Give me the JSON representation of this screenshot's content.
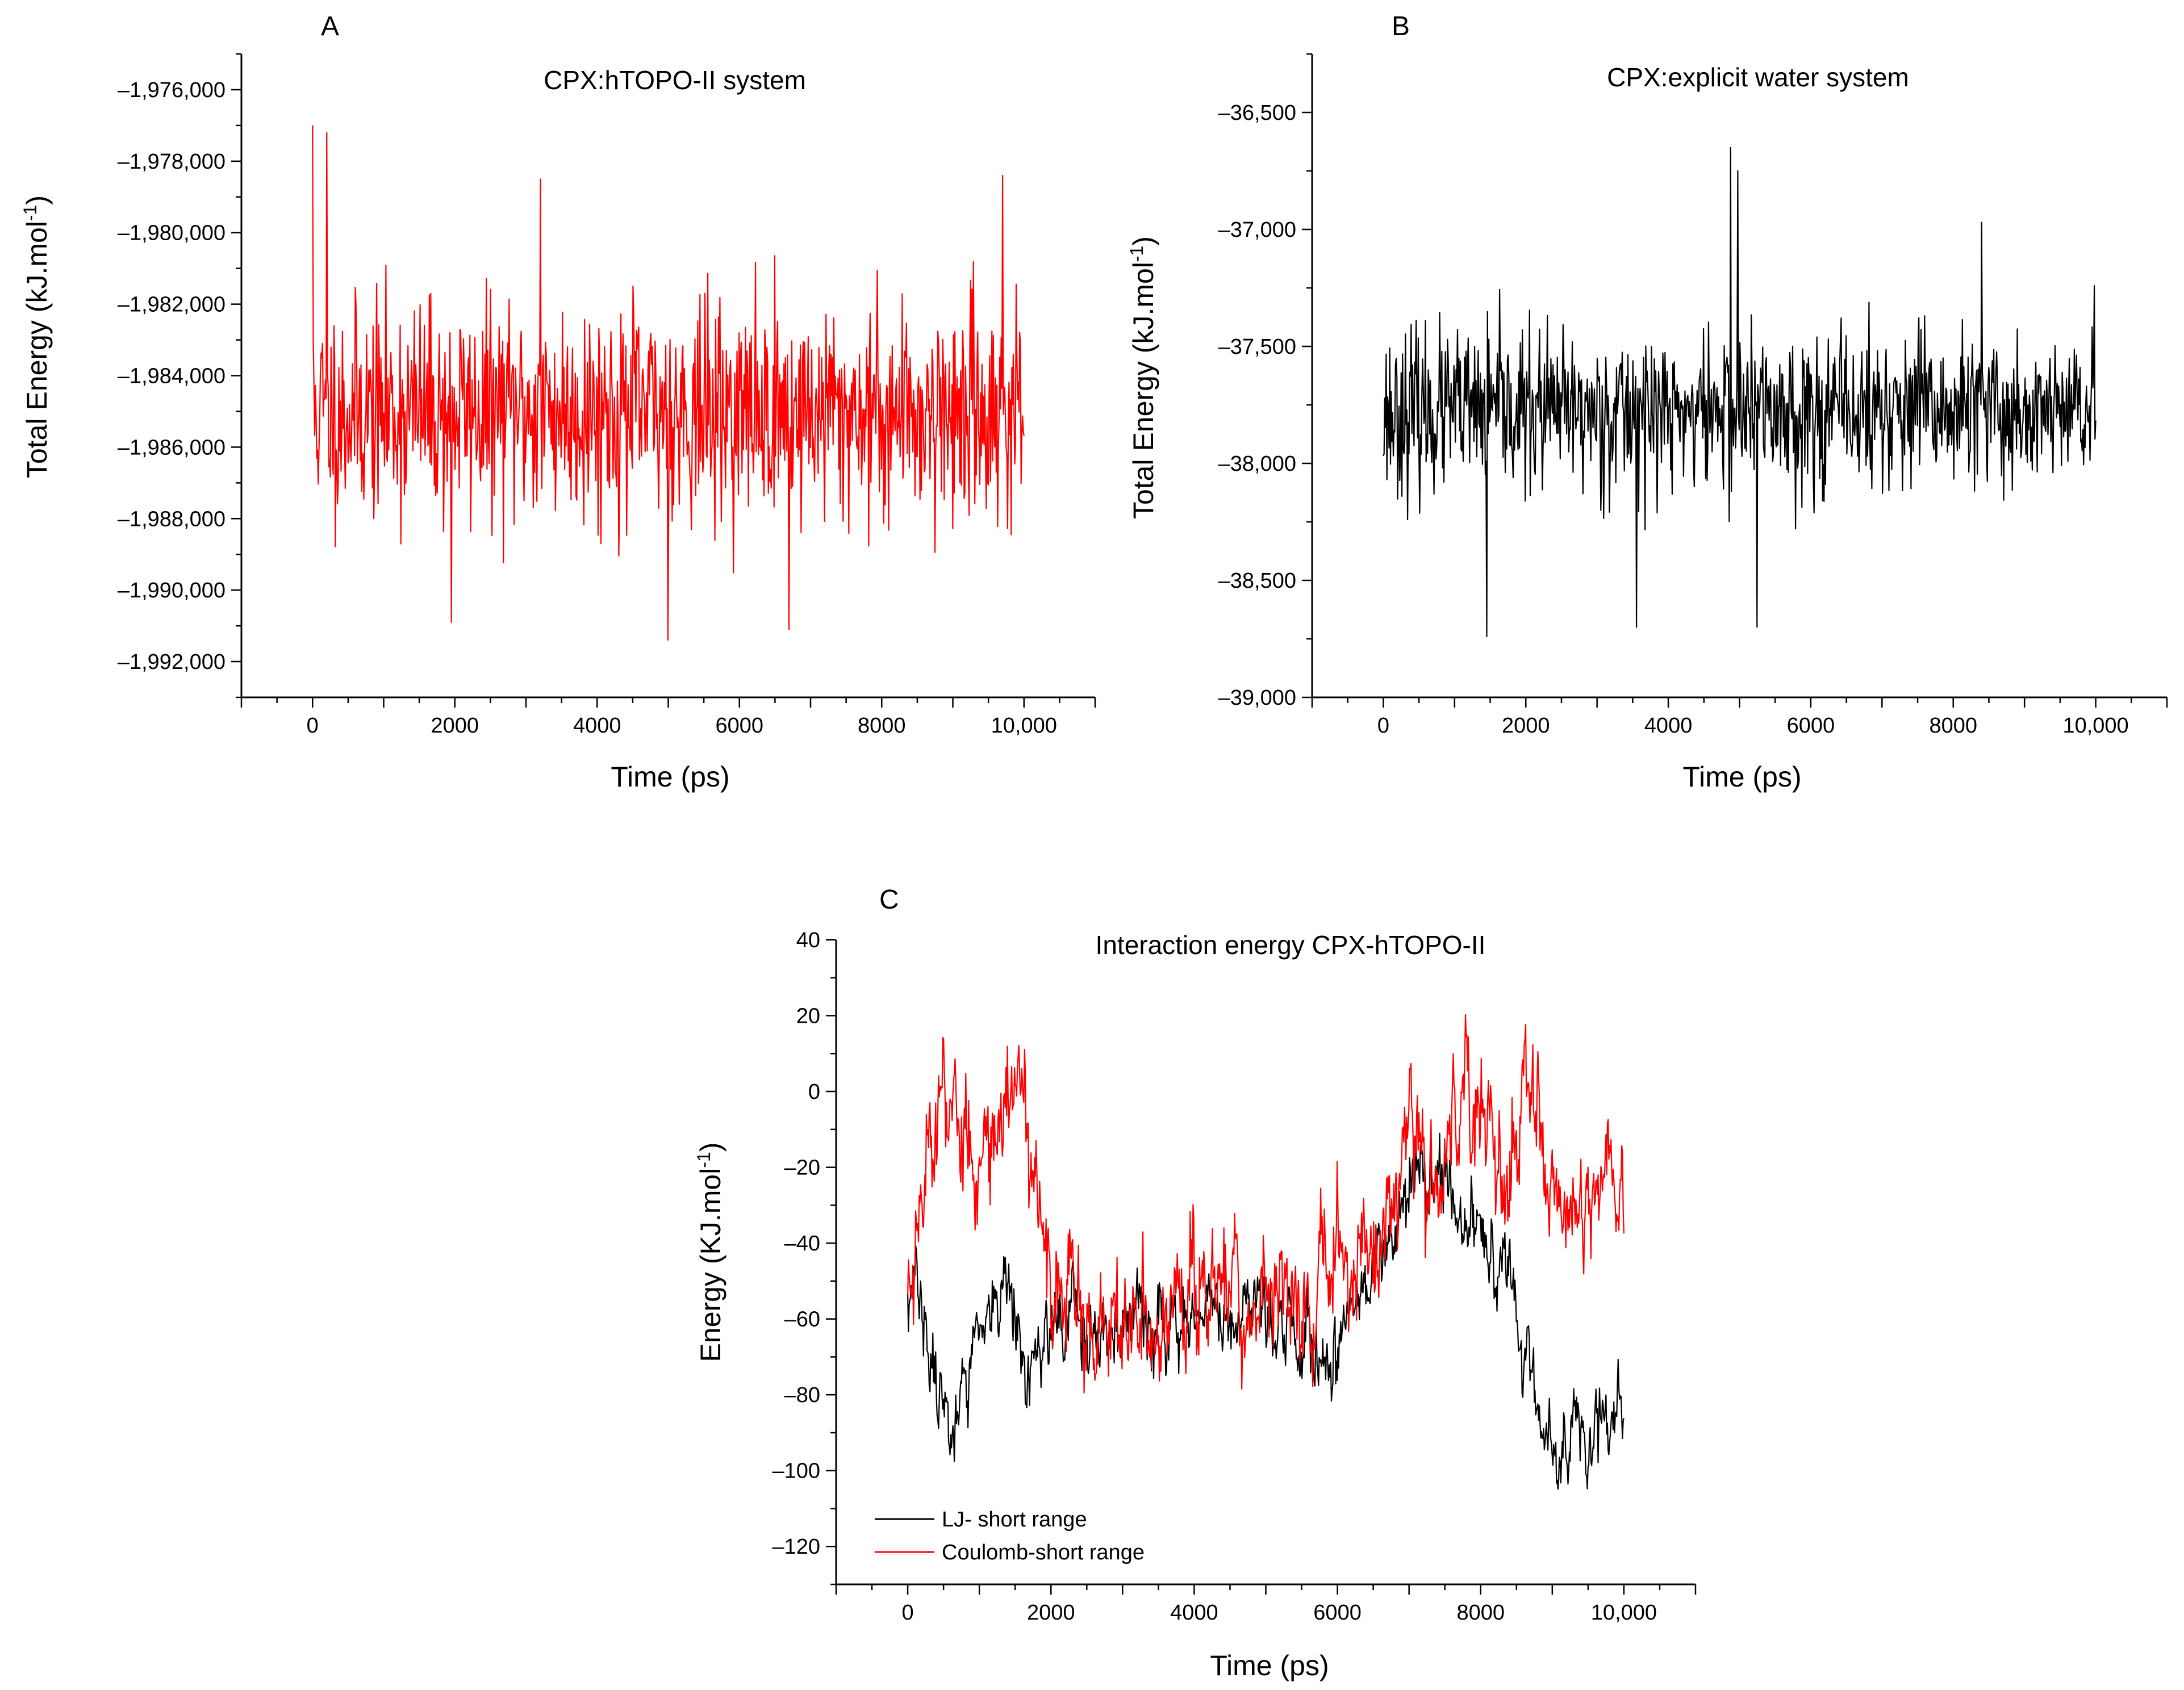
{
  "figure": {
    "panels": [
      "A",
      "B",
      "C"
    ]
  },
  "chart_data": [
    {
      "id": "A",
      "panel_label": "A",
      "type": "line",
      "title": "CPX:hTOPO-II system",
      "xlabel": "Time (ps)",
      "ylabel": "Total Energy (kJ.mol",
      "ylabel_sup": "-1",
      "ylabel_tail": ")",
      "xlim": [
        -1000,
        11000
      ],
      "ylim": [
        -1993000,
        -1975000
      ],
      "x_ticks": [
        0,
        2000,
        4000,
        6000,
        8000,
        10000
      ],
      "x_tick_labels": [
        "0",
        "2000",
        "4000",
        "6000",
        "8000",
        "10,000"
      ],
      "y_ticks": [
        -1976000,
        -1978000,
        -1980000,
        -1982000,
        -1984000,
        -1986000,
        -1988000,
        -1990000,
        -1992000
      ],
      "y_tick_labels": [
        "–1,976,000",
        "–1,978,000",
        "–1,980,000",
        "–1,982,000",
        "–1,984,000",
        "–1,986,000",
        "–1,988,000",
        "–1,990,000",
        "–1,992,000"
      ],
      "series": [
        {
          "name": "Total energy",
          "color": "#ff0000",
          "mean": -1985000,
          "sd": 1500,
          "n": 1000,
          "x_start": 0,
          "x_end": 10000,
          "seed": 11,
          "kind": "noise",
          "spike_points": [
            [
              0,
              -1977000
            ],
            [
              200,
              -1977200
            ],
            [
              3200,
              -1978500
            ],
            [
              9700,
              -1978400
            ],
            [
              5000,
              -1991400
            ],
            [
              6700,
              -1991100
            ],
            [
              1950,
              -1990900
            ]
          ]
        }
      ]
    },
    {
      "id": "B",
      "panel_label": "B",
      "type": "line",
      "title": "CPX:explicit water system",
      "xlabel": "Time (ps)",
      "ylabel": "Total Energy (kJ.mol",
      "ylabel_sup": "-1",
      "ylabel_tail": ")",
      "xlim": [
        -1000,
        11000
      ],
      "ylim": [
        -39000,
        -36250
      ],
      "x_ticks": [
        0,
        2000,
        4000,
        6000,
        8000,
        10000
      ],
      "x_tick_labels": [
        "0",
        "2000",
        "4000",
        "6000",
        "8000",
        "10,000"
      ],
      "y_ticks": [
        -36500,
        -37000,
        -37500,
        -38000,
        -38500,
        -39000
      ],
      "y_tick_labels": [
        "–36,500",
        "–37,000",
        "–37,500",
        "–38,000",
        "–38,500",
        "–39,000"
      ],
      "series": [
        {
          "name": "Total energy",
          "color": "#000000",
          "mean": -37780,
          "sd": 170,
          "n": 1000,
          "x_start": 0,
          "x_end": 10000,
          "seed": 23,
          "kind": "noise",
          "spike_points": [
            [
              4870,
              -36650
            ],
            [
              4970,
              -36750
            ],
            [
              8400,
              -36970
            ],
            [
              1450,
              -38740
            ],
            [
              5250,
              -38700
            ],
            [
              3550,
              -38700
            ]
          ]
        }
      ]
    },
    {
      "id": "C",
      "panel_label": "C",
      "type": "line",
      "title": "Interaction energy CPX-hTOPO-II",
      "xlabel": "Time (ps)",
      "ylabel": "Energy (KJ.mol",
      "ylabel_sup": "-1",
      "ylabel_tail": ")",
      "xlim": [
        -1000,
        11000
      ],
      "ylim": [
        -130,
        40
      ],
      "x_ticks": [
        0,
        2000,
        4000,
        6000,
        8000,
        10000
      ],
      "x_tick_labels": [
        "0",
        "2000",
        "4000",
        "6000",
        "8000",
        "10,000"
      ],
      "y_ticks": [
        40,
        20,
        0,
        -20,
        -40,
        -60,
        -80,
        -100,
        -120
      ],
      "y_tick_labels": [
        "40",
        "20",
        "0",
        "–20",
        "–40",
        "–60",
        "–80",
        "–100",
        "–120"
      ],
      "legend": {
        "position": "bottom-left",
        "entries": [
          "LJ- short range",
          "Coulomb-short range"
        ]
      },
      "series": [
        {
          "name": "LJ- short range",
          "color": "#000000",
          "kind": "random-walk",
          "n": 1000,
          "x_start": 0,
          "x_end": 10000,
          "seed": 37,
          "noise": 5.5,
          "trend": [
            [
              0,
              -55
            ],
            [
              150,
              -45
            ],
            [
              300,
              -75
            ],
            [
              700,
              -85
            ],
            [
              900,
              -65
            ],
            [
              1400,
              -58
            ],
            [
              1700,
              -80
            ],
            [
              2000,
              -60
            ],
            [
              3000,
              -62
            ],
            [
              4000,
              -58
            ],
            [
              5000,
              -55
            ],
            [
              5500,
              -65
            ],
            [
              5900,
              -75
            ],
            [
              6300,
              -55
            ],
            [
              6800,
              -30
            ],
            [
              7200,
              -20
            ],
            [
              7600,
              -30
            ],
            [
              8000,
              -40
            ],
            [
              8400,
              -45
            ],
            [
              8600,
              -70
            ],
            [
              9000,
              -95
            ],
            [
              9500,
              -95
            ],
            [
              10000,
              -90
            ]
          ]
        },
        {
          "name": "Coulomb-short range",
          "color": "#ff0000",
          "kind": "random-walk",
          "n": 1000,
          "x_start": 0,
          "x_end": 10000,
          "seed": 53,
          "noise": 9,
          "trend": [
            [
              0,
              -55
            ],
            [
              200,
              -20
            ],
            [
              500,
              0
            ],
            [
              800,
              -15
            ],
            [
              1100,
              -10
            ],
            [
              1600,
              0
            ],
            [
              1750,
              -25
            ],
            [
              2000,
              -50
            ],
            [
              3000,
              -58
            ],
            [
              4000,
              -55
            ],
            [
              5000,
              -50
            ],
            [
              5500,
              -55
            ],
            [
              6000,
              -48
            ],
            [
              6500,
              -40
            ],
            [
              7000,
              -18
            ],
            [
              7500,
              -12
            ],
            [
              8000,
              0
            ],
            [
              8300,
              -15
            ],
            [
              8800,
              -8
            ],
            [
              9200,
              -45
            ],
            [
              9600,
              -30
            ],
            [
              10000,
              -25
            ]
          ]
        }
      ]
    }
  ]
}
